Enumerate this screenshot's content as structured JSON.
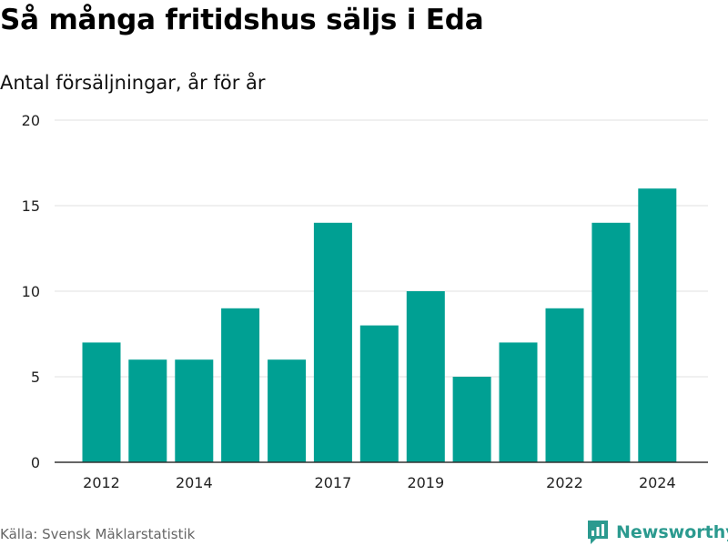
{
  "header": {
    "title": "Så många fritidshus säljs i Eda",
    "subtitle": "Antal försäljningar, år för år"
  },
  "footer": {
    "source": "Källa: Svensk Mäklarstatistik",
    "brand": "Newsworthy",
    "brand_icon": "newsworthy-logo-icon"
  },
  "colors": {
    "bar": "#00a093",
    "grid": "#e0e0e0",
    "axis": "#333333",
    "brand": "#2b9a8f"
  },
  "chart_data": {
    "type": "bar",
    "categories": [
      "2012",
      "2013",
      "2014",
      "2015",
      "2016",
      "2017",
      "2018",
      "2019",
      "2020",
      "2021",
      "2022",
      "2023",
      "2024"
    ],
    "values": [
      7,
      6,
      6,
      9,
      6,
      14,
      8,
      10,
      5,
      7,
      9,
      14,
      16
    ],
    "x_tick_labels": [
      "2012",
      "2014",
      "2017",
      "2019",
      "2022",
      "2024"
    ],
    "y_ticks": [
      0,
      5,
      10,
      15,
      20
    ],
    "ylim": [
      0,
      20
    ],
    "title": "Så många fritidshus säljs i Eda",
    "subtitle": "Antal försäljningar, år för år",
    "grid": true
  }
}
